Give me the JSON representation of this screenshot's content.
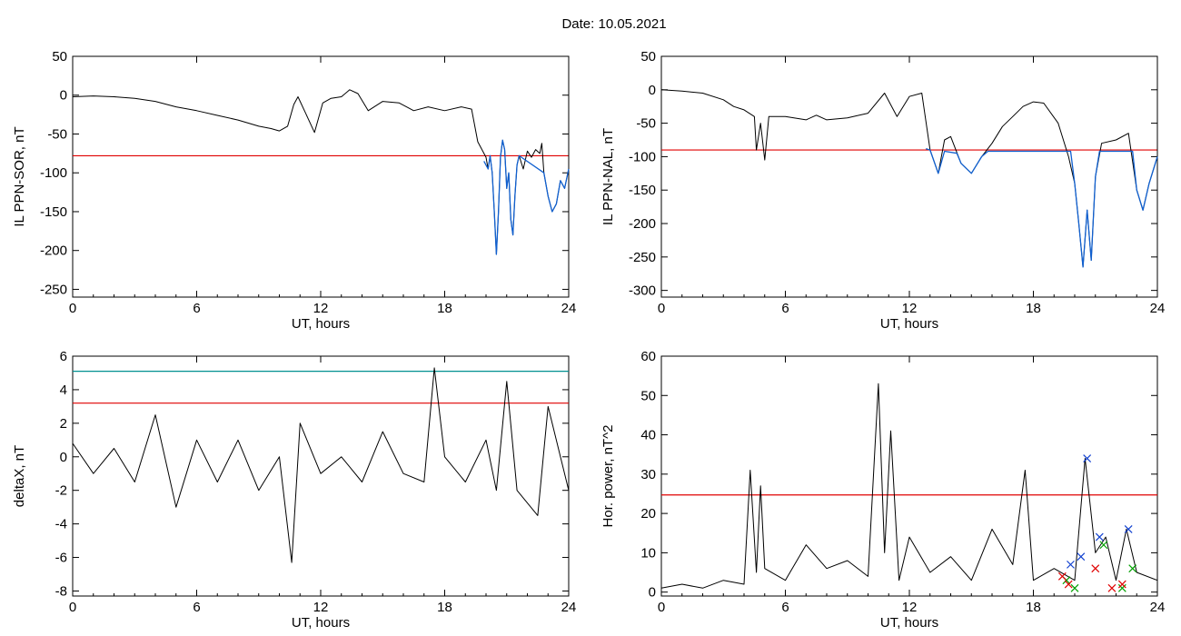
{
  "header": {
    "title": "Date:  10.05.2021"
  },
  "colors": {
    "line": "#000000",
    "threshold": "#e00000",
    "threshold2": "#009090",
    "highlight": "#1060d0",
    "marker_blue": "#1040d0",
    "marker_green": "#00a000",
    "marker_red": "#e00000"
  },
  "chart_data": [
    {
      "type": "line",
      "xlabel": "UT, hours",
      "ylabel": "IL PPN-SOR, nT",
      "xlim": [
        0,
        24
      ],
      "ylim": [
        -260,
        50
      ],
      "xticks": [
        0,
        6,
        12,
        18,
        24
      ],
      "yticks": [
        50,
        0,
        -50,
        -100,
        -150,
        -200,
        -250
      ],
      "threshold": -78,
      "series": [
        {
          "values": [
            [
              0,
              -2
            ],
            [
              1,
              -1
            ],
            [
              2,
              -2
            ],
            [
              3,
              -4
            ],
            [
              4,
              -8
            ],
            [
              5,
              -15
            ],
            [
              6,
              -20
            ],
            [
              7,
              -26
            ],
            [
              8,
              -32
            ],
            [
              9,
              -40
            ],
            [
              9.6,
              -43
            ],
            [
              10,
              -46
            ],
            [
              10.4,
              -40
            ],
            [
              10.7,
              -12
            ],
            [
              10.9,
              -2
            ],
            [
              11.3,
              -25
            ],
            [
              11.7,
              -48
            ],
            [
              12.1,
              -10
            ],
            [
              12.5,
              -4
            ],
            [
              13,
              -2
            ],
            [
              13.4,
              7
            ],
            [
              13.8,
              2
            ],
            [
              14.3,
              -20
            ],
            [
              15,
              -8
            ],
            [
              15.8,
              -10
            ],
            [
              16.5,
              -20
            ],
            [
              17.2,
              -15
            ],
            [
              18,
              -20
            ],
            [
              18.8,
              -15
            ],
            [
              19.3,
              -18
            ],
            [
              19.6,
              -60
            ],
            [
              20,
              -80
            ],
            [
              20.1,
              -95
            ],
            [
              20.2,
              -78
            ],
            [
              20.3,
              -100
            ],
            [
              20.4,
              -150
            ],
            [
              20.5,
              -205
            ],
            [
              20.6,
              -150
            ],
            [
              20.7,
              -80
            ],
            [
              20.8,
              -58
            ],
            [
              20.9,
              -70
            ],
            [
              21.0,
              -120
            ],
            [
              21.1,
              -100
            ],
            [
              21.2,
              -160
            ],
            [
              21.3,
              -180
            ],
            [
              21.4,
              -130
            ],
            [
              21.5,
              -90
            ],
            [
              21.6,
              -78
            ],
            [
              21.8,
              -95
            ],
            [
              22.0,
              -72
            ],
            [
              22.2,
              -80
            ],
            [
              22.4,
              -70
            ],
            [
              22.6,
              -75
            ],
            [
              22.7,
              -62
            ],
            [
              22.8,
              -100
            ],
            [
              23,
              -130
            ],
            [
              23.2,
              -150
            ],
            [
              23.4,
              -140
            ],
            [
              23.6,
              -110
            ],
            [
              23.8,
              -120
            ],
            [
              24,
              -95
            ],
            [
              24,
              -60
            ]
          ]
        },
        {
          "values": [
            [
              19.9,
              -85
            ],
            [
              20.1,
              -95
            ],
            [
              20.2,
              -78
            ],
            [
              20.3,
              -100
            ],
            [
              20.4,
              -150
            ],
            [
              20.5,
              -205
            ],
            [
              20.6,
              -150
            ],
            [
              20.7,
              -80
            ],
            [
              20.8,
              -58
            ],
            [
              20.9,
              -70
            ],
            [
              21.0,
              -120
            ],
            [
              21.1,
              -100
            ],
            [
              21.2,
              -160
            ],
            [
              21.3,
              -180
            ],
            [
              21.4,
              -130
            ],
            [
              21.5,
              -90
            ],
            [
              21.6,
              -78
            ],
            [
              22.8,
              -100
            ],
            [
              23,
              -130
            ],
            [
              23.2,
              -150
            ],
            [
              23.4,
              -140
            ],
            [
              23.6,
              -110
            ],
            [
              23.8,
              -120
            ],
            [
              24,
              -95
            ]
          ]
        }
      ]
    },
    {
      "type": "line",
      "xlabel": "UT, hours",
      "ylabel": "IL PPN-NAL, nT",
      "xlim": [
        0,
        24
      ],
      "ylim": [
        -310,
        50
      ],
      "xticks": [
        0,
        6,
        12,
        18,
        24
      ],
      "yticks": [
        50,
        0,
        -50,
        -100,
        -150,
        -200,
        -250,
        -300
      ],
      "threshold": -90,
      "series": [
        {
          "values": [
            [
              0,
              0
            ],
            [
              1,
              -2
            ],
            [
              2,
              -5
            ],
            [
              3,
              -15
            ],
            [
              3.5,
              -25
            ],
            [
              4,
              -30
            ],
            [
              4.5,
              -40
            ],
            [
              4.6,
              -90
            ],
            [
              4.8,
              -50
            ],
            [
              5,
              -105
            ],
            [
              5.2,
              -40
            ],
            [
              6,
              -40
            ],
            [
              7,
              -45
            ],
            [
              7.5,
              -38
            ],
            [
              8,
              -45
            ],
            [
              9,
              -42
            ],
            [
              10,
              -35
            ],
            [
              10.8,
              -5
            ],
            [
              11.4,
              -40
            ],
            [
              12,
              -10
            ],
            [
              12.6,
              -5
            ],
            [
              13,
              -90
            ],
            [
              13.4,
              -125
            ],
            [
              13.7,
              -75
            ],
            [
              14,
              -70
            ],
            [
              14.5,
              -110
            ],
            [
              15,
              -125
            ],
            [
              15.5,
              -100
            ],
            [
              16,
              -80
            ],
            [
              16.5,
              -55
            ],
            [
              17,
              -40
            ],
            [
              17.5,
              -25
            ],
            [
              18,
              -18
            ],
            [
              18.5,
              -20
            ],
            [
              19.2,
              -50
            ],
            [
              19.7,
              -100
            ],
            [
              20,
              -140
            ],
            [
              20.2,
              -200
            ],
            [
              20.4,
              -265
            ],
            [
              20.6,
              -180
            ],
            [
              20.8,
              -255
            ],
            [
              21,
              -130
            ],
            [
              21.3,
              -80
            ],
            [
              22,
              -75
            ],
            [
              22.6,
              -65
            ],
            [
              23,
              -150
            ],
            [
              23.3,
              -180
            ],
            [
              23.6,
              -140
            ],
            [
              24,
              -100
            ],
            [
              24,
              -80
            ]
          ]
        },
        {
          "values": [
            [
              12.8,
              -88
            ],
            [
              13,
              -90
            ],
            [
              13.4,
              -125
            ],
            [
              13.7,
              -92
            ],
            [
              14.3,
              -95
            ],
            [
              14.5,
              -110
            ],
            [
              15,
              -125
            ],
            [
              15.5,
              -100
            ],
            [
              15.8,
              -92
            ],
            [
              19.8,
              -92
            ],
            [
              20,
              -140
            ],
            [
              20.2,
              -200
            ],
            [
              20.4,
              -265
            ],
            [
              20.6,
              -180
            ],
            [
              20.8,
              -255
            ],
            [
              21,
              -130
            ],
            [
              21.2,
              -92
            ],
            [
              22.8,
              -92
            ],
            [
              23,
              -150
            ],
            [
              23.3,
              -180
            ],
            [
              23.6,
              -140
            ],
            [
              24,
              -100
            ]
          ]
        }
      ]
    },
    {
      "type": "line",
      "xlabel": "UT, hours",
      "ylabel": "deltaX, nT",
      "xlim": [
        0,
        24
      ],
      "ylim": [
        -8.3,
        6
      ],
      "xticks": [
        0,
        6,
        12,
        18,
        24
      ],
      "yticks": [
        6,
        4,
        2,
        0,
        -2,
        -4,
        -6,
        -8
      ],
      "threshold": 3.2,
      "threshold2": 5.1,
      "series": [
        {
          "values": [
            [
              0,
              0.8
            ],
            [
              1,
              -1
            ],
            [
              2,
              0.5
            ],
            [
              3,
              -1.5
            ],
            [
              4,
              2.5
            ],
            [
              5,
              -3
            ],
            [
              6,
              1
            ],
            [
              7,
              -1.5
            ],
            [
              8,
              1
            ],
            [
              9,
              -2
            ],
            [
              10,
              0
            ],
            [
              10.6,
              -6.3
            ],
            [
              11,
              2
            ],
            [
              12,
              -1
            ],
            [
              13,
              0
            ],
            [
              14,
              -1.5
            ],
            [
              15,
              1.5
            ],
            [
              16,
              -1
            ],
            [
              17,
              -1.5
            ],
            [
              17.5,
              5.3
            ],
            [
              18,
              0
            ],
            [
              19,
              -1.5
            ],
            [
              20,
              1
            ],
            [
              20.5,
              -2
            ],
            [
              21,
              4.5
            ],
            [
              21.5,
              -2
            ],
            [
              22.5,
              -3.5
            ],
            [
              23,
              3
            ],
            [
              24,
              -2
            ]
          ]
        }
      ]
    },
    {
      "type": "line",
      "xlabel": "UT, hours",
      "ylabel": "Hor. power, nT^2",
      "xlim": [
        0,
        24
      ],
      "ylim": [
        -1,
        60
      ],
      "xticks": [
        0,
        6,
        12,
        18,
        24
      ],
      "yticks": [
        60,
        50,
        40,
        30,
        20,
        10,
        0
      ],
      "threshold": 24.7,
      "series": [
        {
          "values": [
            [
              0,
              1
            ],
            [
              1,
              2
            ],
            [
              2,
              1
            ],
            [
              3,
              3
            ],
            [
              4,
              2
            ],
            [
              4.3,
              31
            ],
            [
              4.6,
              5
            ],
            [
              4.8,
              27
            ],
            [
              5,
              6
            ],
            [
              6,
              3
            ],
            [
              7,
              12
            ],
            [
              8,
              6
            ],
            [
              9,
              8
            ],
            [
              10,
              4
            ],
            [
              10.5,
              53
            ],
            [
              10.8,
              10
            ],
            [
              11.1,
              41
            ],
            [
              11.5,
              3
            ],
            [
              12,
              14
            ],
            [
              13,
              5
            ],
            [
              14,
              9
            ],
            [
              15,
              3
            ],
            [
              16,
              16
            ],
            [
              17,
              7
            ],
            [
              17.6,
              31
            ],
            [
              18,
              3
            ],
            [
              19,
              6
            ],
            [
              20,
              3
            ],
            [
              20.5,
              34
            ],
            [
              21,
              10
            ],
            [
              21.5,
              14
            ],
            [
              22,
              3
            ],
            [
              22.5,
              16
            ],
            [
              23,
              5
            ],
            [
              24,
              3
            ]
          ]
        }
      ],
      "markers": [
        {
          "series": "blue",
          "values": [
            [
              19.8,
              7
            ],
            [
              20.3,
              9
            ],
            [
              20.6,
              34
            ],
            [
              21.2,
              14
            ],
            [
              22.6,
              16
            ]
          ]
        },
        {
          "series": "green",
          "values": [
            [
              19.6,
              3
            ],
            [
              20.0,
              1
            ],
            [
              21.4,
              12
            ],
            [
              22.3,
              1
            ],
            [
              22.8,
              6
            ]
          ]
        },
        {
          "series": "red",
          "values": [
            [
              19.4,
              4
            ],
            [
              19.7,
              2
            ],
            [
              21.0,
              6
            ],
            [
              21.8,
              1
            ],
            [
              22.3,
              2
            ]
          ]
        }
      ]
    }
  ]
}
